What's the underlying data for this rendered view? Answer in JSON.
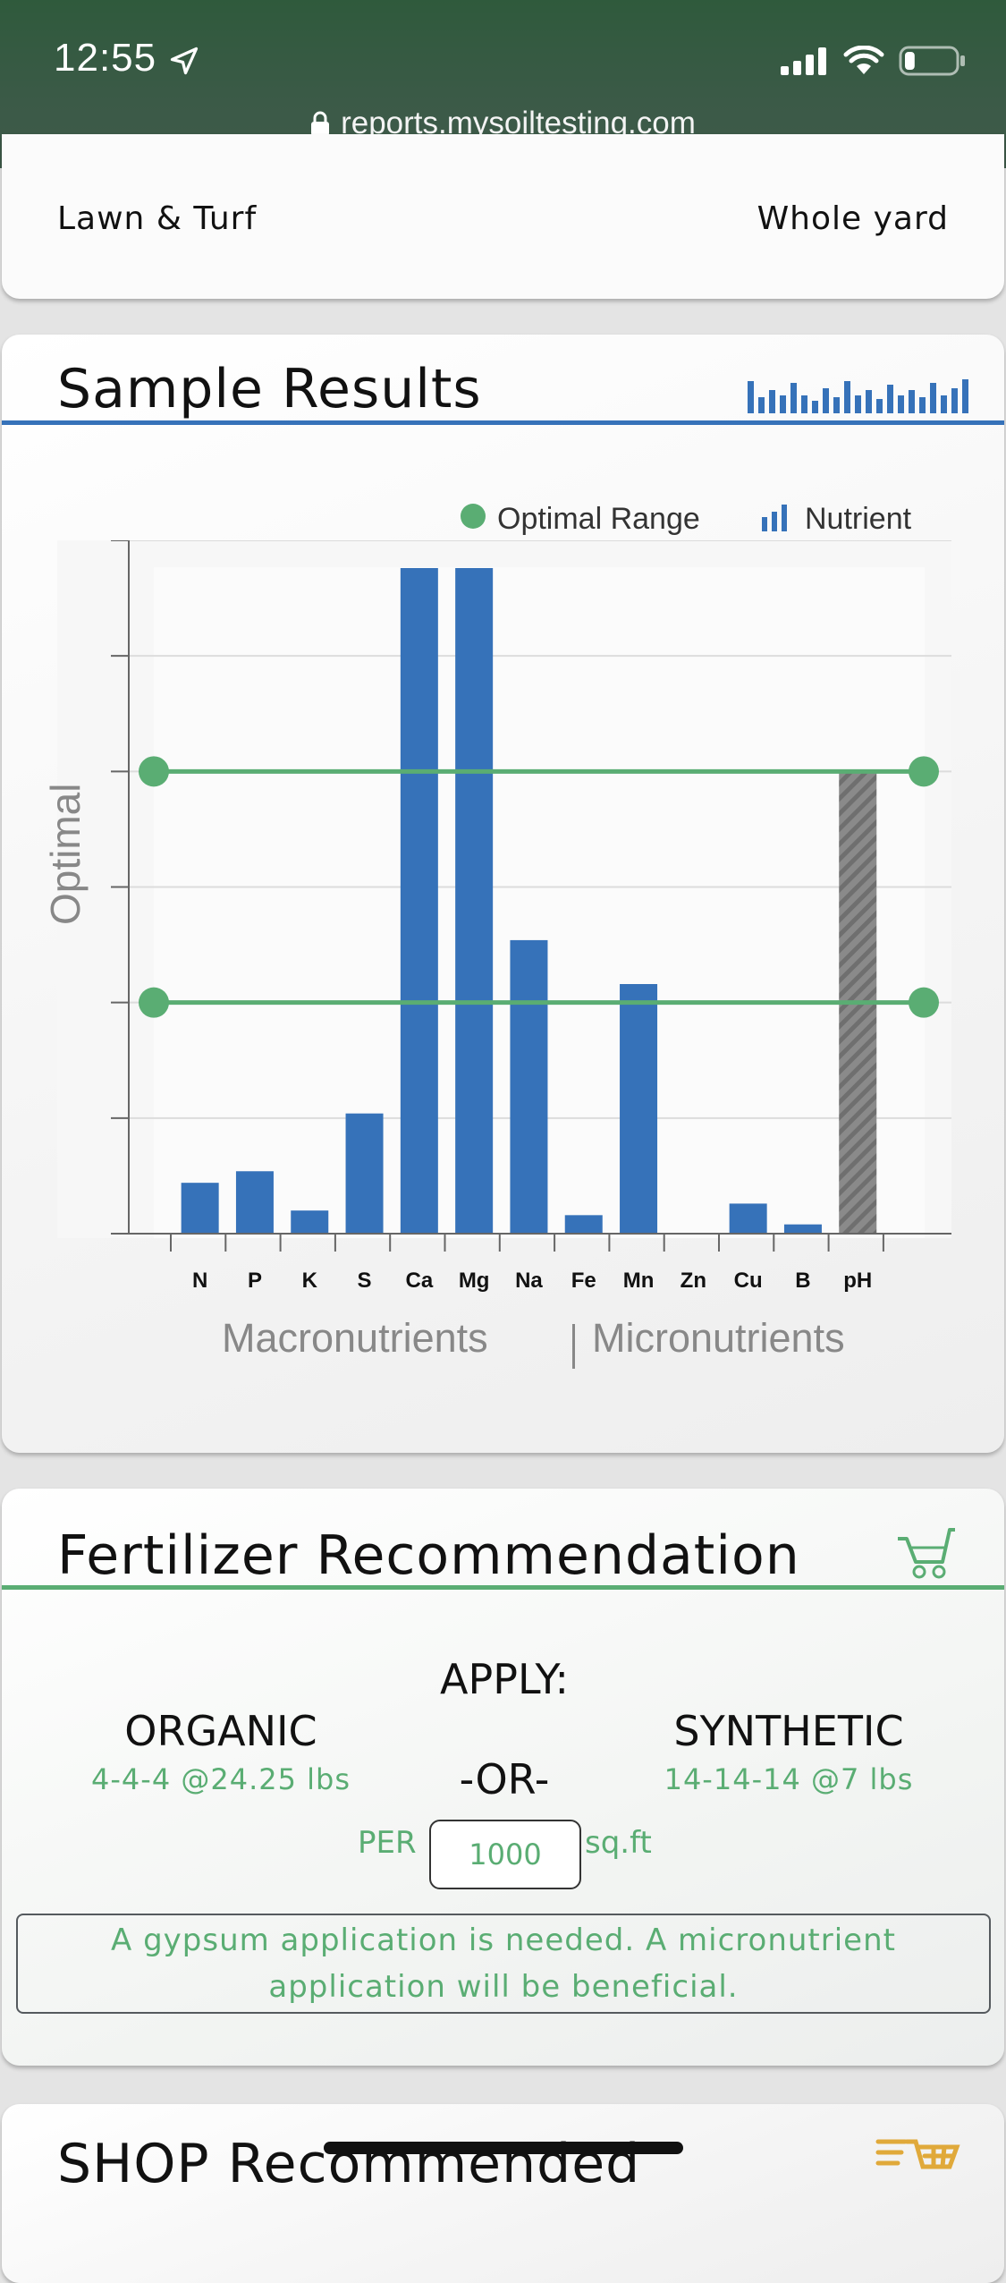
{
  "status_bar": {
    "time": "12:55",
    "url": "reports.mysoiltesting.com",
    "battery_level": 0.2
  },
  "header_card": {
    "left_label": "Lawn & Turf",
    "right_label": "Whole yard"
  },
  "results": {
    "title": "Sample Results",
    "legend_optimal": "Optimal Range",
    "legend_nutrient": "Nutrient",
    "accent_color": "#3672b9",
    "optimal_color": "#5aad73"
  },
  "chart_data": {
    "type": "bar",
    "ylabel": "Optimal",
    "categories": [
      "N",
      "P",
      "K",
      "S",
      "Ca",
      "Mg",
      "Na",
      "Fe",
      "Mn",
      "Zn",
      "Cu",
      "B",
      "pH"
    ],
    "values": [
      0.22,
      0.27,
      0.1,
      0.52,
      2.88,
      2.88,
      1.27,
      0.08,
      1.08,
      0.0,
      0.13,
      0.04,
      2.0
    ],
    "optimal_range": [
      1.0,
      2.0
    ],
    "ylim": [
      0,
      3.0
    ],
    "y_ticks": [
      0.5,
      1.0,
      1.5,
      2.0,
      2.5,
      3.0
    ],
    "grid": true,
    "legend_position": "top-right",
    "group_labels": [
      "Macronutrients",
      "Micronutrients"
    ],
    "hatched_category": "pH"
  },
  "fertilizer": {
    "title": "Fertilizer Recommendation",
    "apply_label": "APPLY:",
    "or_label": "-OR-",
    "organic_label": "ORGANIC",
    "organic_value": "4-4-4 @24.25 lbs",
    "synthetic_label": "SYNTHETIC",
    "synthetic_value": "14-14-14 @7 lbs",
    "per_label": "PER",
    "area_value": "1000",
    "unit_label": "sq.ft",
    "note": "A gypsum application is needed. A micronutrient application will be beneficial."
  },
  "shop": {
    "title": "SHOP Recommended"
  }
}
